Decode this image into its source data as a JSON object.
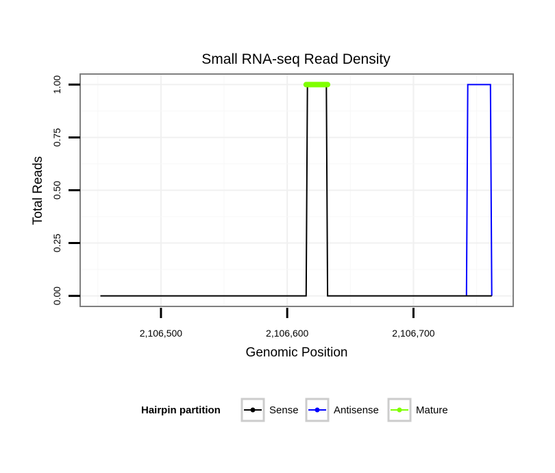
{
  "chart_data": {
    "type": "line",
    "title": "Small RNA-seq Read Density",
    "xlabel": "Genomic Position",
    "ylabel": "Total Reads",
    "xlim": [
      2106436,
      2106779
    ],
    "ylim": [
      -0.05,
      1.05
    ],
    "x_ticks": [
      2106500,
      2106600,
      2106700
    ],
    "x_tick_labels": [
      "2,106,500",
      "2,106,600",
      "2,106,700"
    ],
    "y_ticks": [
      0,
      0.25,
      0.5,
      0.75,
      1.0
    ],
    "y_tick_labels": [
      "0.00",
      "0.25",
      "0.50",
      "0.75",
      "1.00"
    ],
    "grid": true,
    "legend": {
      "title": "Hairpin partition",
      "position": "bottom",
      "entries": [
        "Sense",
        "Antisense",
        "Mature"
      ]
    },
    "series": [
      {
        "name": "Sense",
        "color": "#000000",
        "x": [
          2106452,
          2106615,
          2106616,
          2106631,
          2106632,
          2106762
        ],
        "y": [
          0,
          0,
          1,
          1,
          0,
          0
        ]
      },
      {
        "name": "Antisense",
        "color": "#0000ff",
        "x": [
          2106742,
          2106743,
          2106761,
          2106762
        ],
        "y": [
          0,
          1,
          1,
          0
        ]
      },
      {
        "name": "Mature",
        "color": "#7fff00",
        "x": [
          2106615,
          2106632
        ],
        "y": [
          1,
          1
        ]
      }
    ]
  }
}
